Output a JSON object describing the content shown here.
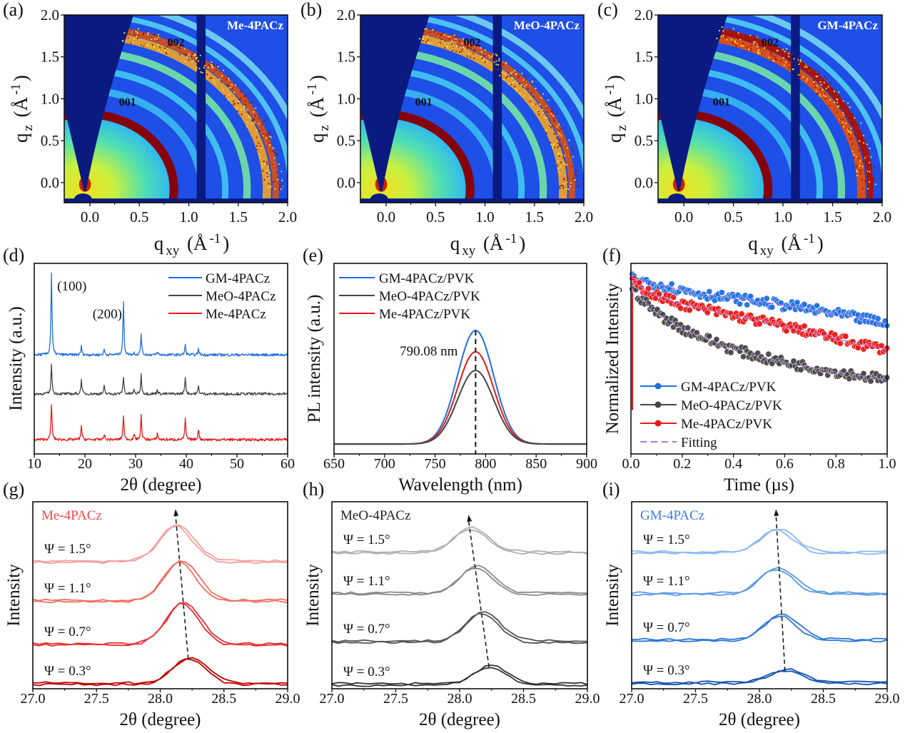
{
  "panel_labels": [
    "(a)",
    "(b)",
    "(c)",
    "(d)",
    "(e)",
    "(f)",
    "(g)",
    "(h)",
    "(i)"
  ],
  "colors": {
    "gm": "#1f6fe0",
    "meo": "#454545",
    "me": "#e81818",
    "fit": "#b070e8"
  },
  "chart_data": [
    {
      "panel": "a",
      "type": "heatmap",
      "sample_label": "Me-4PACz",
      "annotations": [
        "001",
        "002"
      ],
      "xlabel": {
        "main": "q",
        "sub": "xy",
        "unit": " (Å",
        "sup": "-1",
        "end": ")"
      },
      "ylabel": {
        "main": "q",
        "sub": "z",
        "unit": " (Å",
        "sup": "-1",
        "end": ")"
      },
      "xlim": [
        -0.26,
        2.0
      ],
      "ylim": [
        -0.24,
        2.0
      ],
      "xticks": [
        0,
        0.5,
        1.0,
        1.5,
        2.0
      ],
      "xtick_labels": [
        "0.0",
        "0.5",
        "1.0",
        "1.5",
        "2.0"
      ],
      "yticks": [
        0,
        0.5,
        1.0,
        1.5,
        2.0
      ],
      "ytick_labels": [
        "0.0",
        "0.5",
        "1.0",
        "1.5",
        "2.0"
      ],
      "ring_002_intensity": "medium"
    },
    {
      "panel": "b",
      "type": "heatmap",
      "sample_label": "MeO-4PACz",
      "annotations": [
        "001",
        "002"
      ],
      "xlabel": {
        "main": "q",
        "sub": "xy",
        "unit": " (Å",
        "sup": "-1",
        "end": ")"
      },
      "ylabel": {
        "main": "q",
        "sub": "z",
        "unit": " (Å",
        "sup": "-1",
        "end": ")"
      },
      "xlim": [
        -0.26,
        2.0
      ],
      "ylim": [
        -0.24,
        2.0
      ],
      "xticks": [
        0,
        0.5,
        1.0,
        1.5,
        2.0
      ],
      "xtick_labels": [
        "0.0",
        "0.5",
        "1.0",
        "1.5",
        "2.0"
      ],
      "yticks": [
        0,
        0.5,
        1.0,
        1.5,
        2.0
      ],
      "ytick_labels": [
        "0.0",
        "0.5",
        "1.0",
        "1.5",
        "2.0"
      ],
      "ring_002_intensity": "medium"
    },
    {
      "panel": "c",
      "type": "heatmap",
      "sample_label": "GM-4PACz",
      "annotations": [
        "001",
        "002"
      ],
      "xlabel": {
        "main": "q",
        "sub": "xy",
        "unit": " (Å",
        "sup": "-1",
        "end": ")"
      },
      "ylabel": {
        "main": "q",
        "sub": "z",
        "unit": " (Å",
        "sup": "-1",
        "end": ")"
      },
      "xlim": [
        -0.26,
        2.0
      ],
      "ylim": [
        -0.24,
        2.0
      ],
      "xticks": [
        0,
        0.5,
        1.0,
        1.5,
        2.0
      ],
      "xtick_labels": [
        "0.0",
        "0.5",
        "1.0",
        "1.5",
        "2.0"
      ],
      "yticks": [
        0,
        0.5,
        1.0,
        1.5,
        2.0
      ],
      "ytick_labels": [
        "0.0",
        "0.5",
        "1.0",
        "1.5",
        "2.0"
      ],
      "ring_002_intensity": "high"
    },
    {
      "panel": "d",
      "type": "line",
      "xlabel": "2θ (degree)",
      "ylabel": "Intensity (a.u.)",
      "xlim": [
        10,
        60
      ],
      "ylim": [
        0,
        100
      ],
      "xticks": [
        10,
        20,
        30,
        40,
        50,
        60
      ],
      "xtick_labels": [
        "10",
        "20",
        "30",
        "40",
        "50",
        "60"
      ],
      "legend_position": "top-right",
      "annotations": [
        {
          "text": "(100)",
          "x": 13.4
        },
        {
          "text": "(200)",
          "x": 27.6
        }
      ],
      "peak_positions": [
        13.4,
        19.3,
        23.8,
        27.6,
        29.7,
        31.1,
        34.3,
        39.8,
        42.4
      ],
      "series": [
        {
          "name": "GM-4PACz",
          "color": "#1f6fe0",
          "offset": 52,
          "peak_heights": [
            43,
            4.5,
            3,
            28,
            1,
            11,
            1.5,
            5,
            3
          ]
        },
        {
          "name": "MeO-4PACz",
          "color": "#454545",
          "offset": 31.5,
          "peak_heights": [
            15.5,
            7.5,
            4,
            9,
            2,
            10,
            2.5,
            9,
            4
          ]
        },
        {
          "name": "Me-4PACz",
          "color": "#e81818",
          "offset": 7.5,
          "peak_heights": [
            19,
            7.5,
            3,
            13,
            3,
            12.5,
            3.5,
            11,
            5.5
          ]
        }
      ]
    },
    {
      "panel": "e",
      "type": "line",
      "xlabel": "Wavelength (nm)",
      "ylabel": "PL intensity (a.u.)",
      "xlim": [
        650,
        900
      ],
      "ylim": [
        0,
        1
      ],
      "xticks": [
        650,
        700,
        750,
        800,
        850,
        900
      ],
      "xtick_labels": [
        "650",
        "700",
        "750",
        "800",
        "850",
        "900"
      ],
      "legend_position": "top-left",
      "annotation": "790.08 nm",
      "peak_wavelength": 790.08,
      "baseline": 0.052,
      "fwhm_nm": 42,
      "series": [
        {
          "name": "GM-4PACz/PVK",
          "color": "#1f6fe0",
          "peak_height": 0.596
        },
        {
          "name": "MeO-4PACz/PVK",
          "color": "#454545",
          "peak_height": 0.386
        },
        {
          "name": "Me-4PACz/PVK",
          "color": "#e81818",
          "peak_height": 0.484
        }
      ]
    },
    {
      "panel": "f",
      "type": "scatter",
      "xlabel": "Time (µs)",
      "ylabel": "Normalized Intensity",
      "xlim": [
        0,
        1.0
      ],
      "ylim": [
        0,
        1
      ],
      "xticks": [
        0,
        0.2,
        0.4,
        0.6,
        0.8,
        1.0
      ],
      "xtick_labels": [
        "0.0",
        "0.2",
        "0.4",
        "0.6",
        "0.8",
        "1.0"
      ],
      "legend_position": "bottom-left",
      "x": [
        0,
        0.1,
        0.2,
        0.3,
        0.4,
        0.5,
        0.6,
        0.7,
        0.8,
        0.9,
        1.0
      ],
      "series": [
        {
          "name": "GM-4PACz/PVK",
          "color": "#1f6fe0",
          "values": [
            0.925,
            0.89,
            0.86,
            0.835,
            0.815,
            0.8,
            0.78,
            0.76,
            0.735,
            0.71,
            0.684
          ]
        },
        {
          "name": "MeO-4PACz/PVK",
          "color": "#454545",
          "values": [
            0.868,
            0.74,
            0.66,
            0.6,
            0.55,
            0.51,
            0.48,
            0.455,
            0.43,
            0.41,
            0.39
          ]
        },
        {
          "name": "Me-4PACz/PVK",
          "color": "#e81818",
          "values": [
            0.906,
            0.83,
            0.786,
            0.755,
            0.725,
            0.7,
            0.67,
            0.64,
            0.605,
            0.575,
            0.549
          ]
        }
      ],
      "fit_name": "Fitting"
    },
    {
      "panel": "g",
      "type": "line",
      "sample_label": "Me-4PACz",
      "label_color": "#f04848",
      "xlabel": "2θ (degree)",
      "ylabel": "Intensity",
      "xlim": [
        27.0,
        29.0
      ],
      "ylim": [
        0,
        100
      ],
      "xticks": [
        27.0,
        27.5,
        28.0,
        28.5,
        29.0
      ],
      "xtick_labels": [
        "27.0",
        "27.5",
        "28.0",
        "28.5",
        "29.0"
      ],
      "arrow": {
        "from": [
          28.22,
          16
        ],
        "to": [
          28.12,
          96
        ]
      },
      "series": [
        {
          "name": "Ψ = 1.5°",
          "color": "#f4a0a0",
          "peak": 28.12,
          "offset": 67.6,
          "height": 19.5
        },
        {
          "name": "Ψ = 1.1°",
          "color": "#f07060",
          "peak": 28.15,
          "offset": 46.6,
          "height": 21
        },
        {
          "name": "Ψ = 0.7°",
          "color": "#e83030",
          "peak": 28.17,
          "offset": 23.3,
          "height": 22.5
        },
        {
          "name": "Ψ = 0.3°",
          "color": "#c00000",
          "peak": 28.22,
          "offset": 2.3,
          "height": 13.7
        }
      ]
    },
    {
      "panel": "h",
      "type": "line",
      "sample_label": "MeO-4PACz",
      "label_color": "#222222",
      "xlabel": "2θ (degree)",
      "ylabel": "Intensity",
      "xlim": [
        27.0,
        29.0
      ],
      "ylim": [
        0,
        100
      ],
      "xticks": [
        27.0,
        27.5,
        28.0,
        28.5,
        29.0
      ],
      "xtick_labels": [
        "27.0",
        "27.5",
        "28.0",
        "28.5",
        "29.0"
      ],
      "arrow": {
        "from": [
          28.23,
          11.5
        ],
        "to": [
          28.07,
          93
        ]
      },
      "series": [
        {
          "name": "Ψ = 1.5°",
          "color": "#b0b0b0",
          "peak": 28.08,
          "offset": 72.5,
          "height": 13
        },
        {
          "name": "Ψ = 1.1°",
          "color": "#8a8a8a",
          "peak": 28.12,
          "offset": 50.4,
          "height": 14.5
        },
        {
          "name": "Ψ = 0.7°",
          "color": "#555555",
          "peak": 28.17,
          "offset": 24.8,
          "height": 15.7
        },
        {
          "name": "Ψ = 0.3°",
          "color": "#333333",
          "peak": 28.23,
          "offset": 1.9,
          "height": 9.6
        }
      ]
    },
    {
      "panel": "i",
      "type": "line",
      "sample_label": "GM-4PACz",
      "label_color": "#3a7ee0",
      "xlabel": "2θ (degree)",
      "ylabel": "Intensity",
      "xlim": [
        27.0,
        29.0
      ],
      "ylim": [
        0,
        100
      ],
      "xticks": [
        27.0,
        27.5,
        28.0,
        28.5,
        29.0
      ],
      "xtick_labels": [
        "27.0",
        "27.5",
        "28.0",
        "28.5",
        "29.0"
      ],
      "arrow": {
        "from": [
          28.2,
          9.5
        ],
        "to": [
          28.13,
          96
        ]
      },
      "series": [
        {
          "name": "Ψ = 1.5°",
          "color": "#8ab8f0",
          "peak": 28.13,
          "offset": 72.5,
          "height": 12.2
        },
        {
          "name": "Ψ = 1.1°",
          "color": "#5a9ae6",
          "peak": 28.13,
          "offset": 50.4,
          "height": 13.7
        },
        {
          "name": "Ψ = 0.7°",
          "color": "#2a78d8",
          "peak": 28.16,
          "offset": 25.6,
          "height": 13.3
        },
        {
          "name": "Ψ = 0.3°",
          "color": "#1050b0",
          "peak": 28.2,
          "offset": 2.7,
          "height": 6.8
        }
      ]
    }
  ]
}
